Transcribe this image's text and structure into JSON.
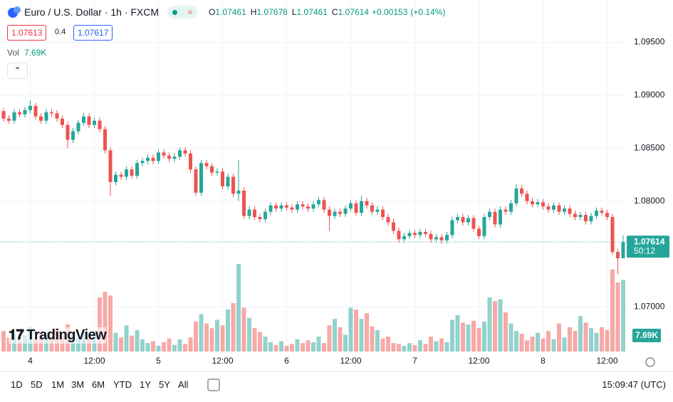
{
  "header": {
    "symbol": "Euro / U.S. Dollar · 1h · FXCM",
    "ohlc": [
      {
        "key": "O",
        "value": "1.07461"
      },
      {
        "key": "H",
        "value": "1.07678"
      },
      {
        "key": "L",
        "value": "1.07461"
      },
      {
        "key": "C",
        "value": "1.07614"
      }
    ],
    "change": "+0.00153",
    "change_pct": "(+0.14%)",
    "bid": "1.07613",
    "spread": "0.4",
    "ask": "1.07617",
    "vol_label": "Vol",
    "vol_value": "7.69K"
  },
  "chart_data": {
    "type": "candlestick",
    "categories": [
      null,
      null,
      null,
      null,
      null,
      "4",
      null,
      null,
      null,
      null,
      null,
      null,
      null,
      null,
      null,
      null,
      null,
      "12:00",
      null,
      null,
      null,
      null,
      null,
      null,
      null,
      null,
      null,
      null,
      null,
      "5",
      null,
      null,
      null,
      null,
      null,
      null,
      null,
      null,
      null,
      null,
      null,
      "12:00",
      null,
      null,
      null,
      null,
      null,
      null,
      null,
      null,
      null,
      null,
      null,
      "6",
      null,
      null,
      null,
      null,
      null,
      null,
      null,
      null,
      null,
      null,
      null,
      "12:00",
      null,
      null,
      null,
      null,
      null,
      null,
      null,
      null,
      null,
      null,
      null,
      "7",
      null,
      null,
      null,
      null,
      null,
      null,
      null,
      null,
      null,
      null,
      null,
      "12:00",
      null,
      null,
      null,
      null,
      null,
      null,
      null,
      null,
      null,
      null,
      null,
      "8",
      null,
      null,
      null,
      null,
      null,
      null,
      null,
      null,
      null,
      null,
      null,
      "12:00",
      null,
      null,
      null
    ],
    "open": [
      1.0885,
      1.0878,
      1.0876,
      1.0884,
      1.0882,
      1.0886,
      1.089,
      1.088,
      1.0876,
      1.0884,
      1.0883,
      1.0878,
      1.0872,
      1.0858,
      1.0866,
      1.0874,
      1.088,
      1.0872,
      1.0876,
      1.0868,
      1.0848,
      1.0818,
      1.0825,
      1.0823,
      1.083,
      1.0824,
      1.0836,
      1.0838,
      1.0841,
      1.0838,
      1.0846,
      1.0843,
      1.084,
      1.0842,
      1.0848,
      1.0845,
      1.083,
      1.0808,
      1.0836,
      1.0833,
      1.0827,
      1.0828,
      1.0814,
      1.0823,
      1.0807,
      1.081,
      1.0786,
      1.0792,
      1.0785,
      1.0783,
      1.079,
      1.0796,
      1.0793,
      1.0796,
      1.0794,
      1.0792,
      1.0797,
      1.0795,
      1.0793,
      1.0797,
      1.0801,
      1.0792,
      1.0786,
      1.079,
      1.0788,
      1.0793,
      1.0798,
      1.0789,
      1.08,
      1.0796,
      1.079,
      1.0792,
      1.0785,
      1.078,
      1.0772,
      1.0764,
      1.0767,
      1.077,
      1.0768,
      1.0771,
      1.0769,
      1.0764,
      1.0766,
      1.0763,
      1.0768,
      1.0782,
      1.0785,
      1.078,
      1.0784,
      1.0774,
      1.0767,
      1.0785,
      1.079,
      1.0778,
      1.0792,
      1.079,
      1.0798,
      1.0812,
      1.0807,
      1.08,
      1.0797,
      1.0799,
      1.0795,
      1.0792,
      1.0796,
      1.079,
      1.0793,
      1.0788,
      1.0785,
      1.0787,
      1.0781,
      1.0786,
      1.0791,
      1.0789,
      1.0785,
      1.0752,
      1.07461
    ],
    "high": [
      1.0888,
      1.0881,
      1.0887,
      1.0887,
      1.0889,
      1.0895,
      1.0893,
      1.0883,
      1.0887,
      1.0887,
      1.0886,
      1.0881,
      1.0875,
      1.0869,
      1.0877,
      1.0883,
      1.0883,
      1.0879,
      1.0879,
      1.0871,
      1.0851,
      1.0828,
      1.0828,
      1.0833,
      1.0833,
      1.0839,
      1.0841,
      1.0844,
      1.0844,
      1.0849,
      1.0849,
      1.0846,
      1.0845,
      1.0851,
      1.0851,
      1.0848,
      1.0833,
      1.0839,
      1.0839,
      1.0836,
      1.0831,
      1.0831,
      1.0826,
      1.0826,
      1.0839,
      1.0813,
      1.0795,
      1.0795,
      1.0788,
      1.0793,
      1.0799,
      1.0799,
      1.0799,
      1.0799,
      1.0797,
      1.08,
      1.08,
      1.0798,
      1.08,
      1.0804,
      1.0804,
      1.0795,
      1.0793,
      1.0793,
      1.0796,
      1.0801,
      1.0801,
      1.0805,
      1.0803,
      1.0799,
      1.0795,
      1.0795,
      1.0788,
      1.0783,
      1.0775,
      1.077,
      1.0773,
      1.0773,
      1.0774,
      1.0774,
      1.0772,
      1.0769,
      1.0769,
      1.0771,
      1.0785,
      1.0788,
      1.0788,
      1.0787,
      1.0787,
      1.0777,
      1.0788,
      1.0793,
      1.0793,
      1.0795,
      1.0795,
      1.0801,
      1.0816,
      1.0815,
      1.081,
      1.0803,
      1.0802,
      1.0802,
      1.0798,
      1.0799,
      1.0799,
      1.0796,
      1.0796,
      1.0791,
      1.079,
      1.079,
      1.0789,
      1.0794,
      1.0794,
      1.0792,
      1.0788,
      1.0755,
      1.07678
    ],
    "low": [
      1.0875,
      1.0873,
      1.0873,
      1.0879,
      1.0879,
      1.0883,
      1.0877,
      1.0873,
      1.0873,
      1.088,
      1.0875,
      1.0869,
      1.085,
      1.0855,
      1.0863,
      1.0871,
      1.0869,
      1.0869,
      1.0865,
      1.0845,
      1.0805,
      1.0815,
      1.082,
      1.082,
      1.0821,
      1.0821,
      1.0833,
      1.0835,
      1.0835,
      1.0835,
      1.084,
      1.0837,
      1.0837,
      1.0839,
      1.0842,
      1.0827,
      1.0805,
      1.0805,
      1.083,
      1.0824,
      1.0824,
      1.0811,
      1.0811,
      1.0804,
      1.08,
      1.0783,
      1.0783,
      1.0782,
      1.078,
      1.078,
      1.0787,
      1.079,
      1.079,
      1.0791,
      1.0789,
      1.0789,
      1.0792,
      1.079,
      1.079,
      1.0794,
      1.0789,
      1.0772,
      1.0783,
      1.0785,
      1.0785,
      1.079,
      1.0786,
      1.0786,
      1.0793,
      1.0787,
      1.0787,
      1.0782,
      1.0777,
      1.0769,
      1.0761,
      1.0761,
      1.0764,
      1.0765,
      1.0765,
      1.0766,
      1.0761,
      1.0761,
      1.076,
      1.076,
      1.0765,
      1.0779,
      1.0777,
      1.0777,
      1.0771,
      1.0764,
      1.0764,
      1.0782,
      1.0775,
      1.0775,
      1.0787,
      1.0787,
      1.0795,
      1.0804,
      1.0797,
      1.0794,
      1.0794,
      1.0792,
      1.0789,
      1.0789,
      1.0787,
      1.0787,
      1.0785,
      1.0782,
      1.0782,
      1.0778,
      1.0778,
      1.0783,
      1.0786,
      1.0782,
      1.0749,
      1.0731,
      1.07461
    ],
    "close": [
      1.0878,
      1.0876,
      1.0884,
      1.0882,
      1.0886,
      1.089,
      1.088,
      1.0876,
      1.0884,
      1.0883,
      1.0878,
      1.0872,
      1.0858,
      1.0866,
      1.0874,
      1.088,
      1.0872,
      1.0876,
      1.0868,
      1.0848,
      1.0818,
      1.0825,
      1.0823,
      1.083,
      1.0824,
      1.0836,
      1.0838,
      1.0841,
      1.0838,
      1.0846,
      1.0843,
      1.084,
      1.0842,
      1.0848,
      1.0845,
      1.083,
      1.0808,
      1.0836,
      1.0833,
      1.0827,
      1.0828,
      1.0814,
      1.0823,
      1.0807,
      1.081,
      1.0786,
      1.0792,
      1.0785,
      1.0783,
      1.079,
      1.0796,
      1.0793,
      1.0796,
      1.0794,
      1.0792,
      1.0797,
      1.0795,
      1.0793,
      1.0797,
      1.0801,
      1.0792,
      1.0786,
      1.079,
      1.0788,
      1.0793,
      1.0798,
      1.0789,
      1.08,
      1.0796,
      1.079,
      1.0792,
      1.0785,
      1.078,
      1.0772,
      1.0764,
      1.0767,
      1.077,
      1.0768,
      1.0771,
      1.0769,
      1.0764,
      1.0766,
      1.0763,
      1.0768,
      1.0782,
      1.0785,
      1.078,
      1.0784,
      1.0774,
      1.0767,
      1.0785,
      1.079,
      1.0778,
      1.0792,
      1.079,
      1.0798,
      1.0812,
      1.0807,
      1.08,
      1.0797,
      1.0799,
      1.0795,
      1.0792,
      1.0796,
      1.079,
      1.0793,
      1.0788,
      1.0785,
      1.0787,
      1.0781,
      1.0786,
      1.0791,
      1.0789,
      1.0785,
      1.0752,
      1.0746,
      1.07614
    ],
    "volume": [
      2200,
      1500,
      1800,
      1200,
      1700,
      2600,
      1400,
      1900,
      2100,
      1600,
      2500,
      1800,
      2900,
      2000,
      1400,
      2100,
      1700,
      2200,
      5800,
      6400,
      6000,
      2000,
      1500,
      2800,
      1700,
      2300,
      1300,
      900,
      1100,
      600,
      1000,
      1400,
      700,
      1300,
      800,
      1500,
      3200,
      4000,
      3000,
      2500,
      3400,
      2800,
      4500,
      5200,
      9400,
      4700,
      3600,
      2500,
      2100,
      1600,
      1000,
      700,
      1100,
      600,
      800,
      1300,
      900,
      1200,
      1000,
      1600,
      900,
      2800,
      3500,
      2600,
      1800,
      4700,
      4500,
      3500,
      4100,
      2700,
      2300,
      1400,
      1600,
      900,
      800,
      600,
      900,
      700,
      1200,
      800,
      1600,
      1100,
      1400,
      1000,
      3400,
      3900,
      3100,
      2900,
      3300,
      2500,
      3200,
      5800,
      5400,
      5600,
      4200,
      3000,
      2200,
      1900,
      1200,
      1600,
      2000,
      1400,
      2200,
      1300,
      3000,
      1500,
      2600,
      2200,
      3800,
      3100,
      2500,
      2000,
      2600,
      2300,
      8800,
      7400,
      7690
    ],
    "ylim": [
      1.0656,
      1.099
    ],
    "yticks": [
      {
        "value": 1.07,
        "label": "1.07000"
      },
      {
        "value": 1.08,
        "label": "1.08000"
      },
      {
        "value": 1.085,
        "label": "1.08500"
      },
      {
        "value": 1.09,
        "label": "1.09000"
      },
      {
        "value": 1.095,
        "label": "1.09500"
      }
    ],
    "vlim": [
      0,
      37700
    ],
    "up_color": "#26a69a",
    "down_color": "#ef5350",
    "grid": true,
    "last_price_label": "1.07614",
    "countdown": "50:12",
    "volume_label": "7.69K"
  },
  "watermark": "TradingView",
  "toolbar": {
    "ranges": [
      "1D",
      "5D",
      "1M",
      "3M",
      "6M",
      "YTD",
      "1Y",
      "5Y",
      "All"
    ],
    "clock": "15:09:47 (UTC)"
  }
}
